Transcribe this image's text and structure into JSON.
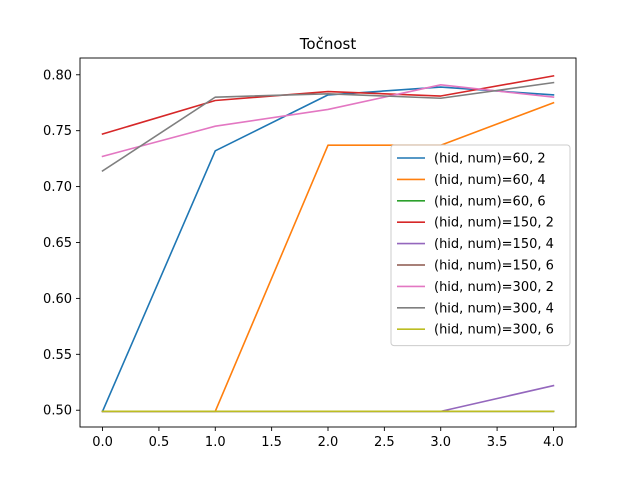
{
  "chart_data": {
    "type": "line",
    "title": "Točnost",
    "xlabel": "",
    "ylabel": "",
    "x": [
      0,
      1,
      2,
      3,
      4
    ],
    "xlim": [
      -0.2,
      4.2
    ],
    "ylim": [
      0.485,
      0.815
    ],
    "xticks": [
      "0.0",
      "0.5",
      "1.0",
      "1.5",
      "2.0",
      "2.5",
      "3.0",
      "3.5",
      "4.0"
    ],
    "xtick_values": [
      0,
      0.5,
      1,
      1.5,
      2,
      2.5,
      3,
      3.5,
      4
    ],
    "yticks": [
      "0.50",
      "0.55",
      "0.60",
      "0.65",
      "0.70",
      "0.75",
      "0.80"
    ],
    "ytick_values": [
      0.5,
      0.55,
      0.6,
      0.65,
      0.7,
      0.75,
      0.8
    ],
    "grid": false,
    "legend_position": "center-right",
    "series": [
      {
        "name": "(hid, num)=60, 2",
        "color": "#1f77b4",
        "values": [
          0.499,
          0.732,
          0.782,
          0.789,
          0.782
        ]
      },
      {
        "name": "(hid, num)=60, 4",
        "color": "#ff7f0e",
        "values": [
          0.499,
          0.499,
          0.737,
          0.737,
          0.775
        ]
      },
      {
        "name": "(hid, num)=60, 6",
        "color": "#2ca02c",
        "values": [
          0.499,
          0.499,
          0.499,
          0.499,
          0.499
        ]
      },
      {
        "name": "(hid, num)=150, 2",
        "color": "#d62728",
        "values": [
          0.747,
          0.777,
          0.785,
          0.781,
          0.799
        ]
      },
      {
        "name": "(hid, num)=150, 4",
        "color": "#9467bd",
        "values": [
          0.499,
          0.499,
          0.499,
          0.499,
          0.522
        ]
      },
      {
        "name": "(hid, num)=150, 6",
        "color": "#8c564b",
        "values": [
          0.499,
          0.499,
          0.499,
          0.499,
          0.499
        ]
      },
      {
        "name": "(hid, num)=300, 2",
        "color": "#e377c2",
        "values": [
          0.727,
          0.754,
          0.769,
          0.791,
          0.78
        ]
      },
      {
        "name": "(hid, num)=300, 4",
        "color": "#7f7f7f",
        "values": [
          0.714,
          0.78,
          0.783,
          0.779,
          0.793
        ]
      },
      {
        "name": "(hid, num)=300, 6",
        "color": "#bcbd22",
        "values": [
          0.499,
          0.499,
          0.499,
          0.499,
          0.499
        ]
      }
    ]
  }
}
